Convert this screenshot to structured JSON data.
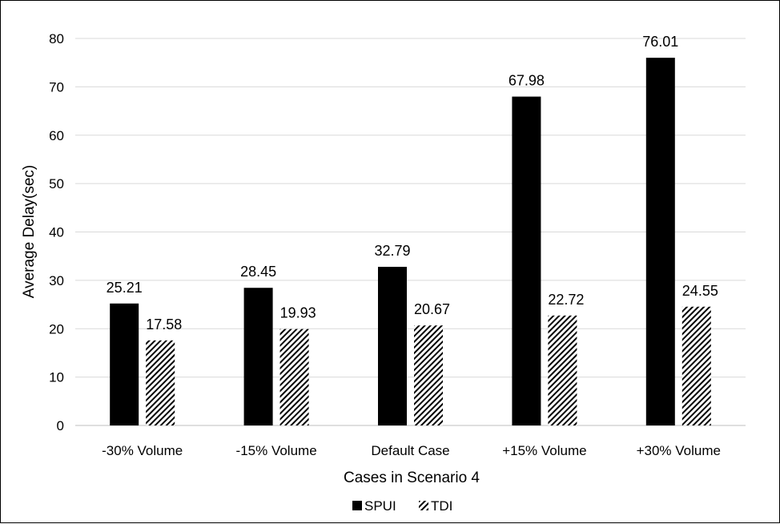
{
  "chart_data": {
    "type": "bar",
    "title": "",
    "xlabel": "Cases in Scenario 4",
    "ylabel": "Average Delay(sec)",
    "ylim": [
      0,
      80
    ],
    "yticks": [
      0,
      10,
      20,
      30,
      40,
      50,
      60,
      70,
      80
    ],
    "grid": "horizontal",
    "legend_position": "bottom",
    "categories": [
      "-30% Volume",
      "-15% Volume",
      "Default Case",
      "+15% Volume",
      "+30% Volume"
    ],
    "series": [
      {
        "name": "SPUI",
        "values": [
          25.21,
          28.45,
          32.79,
          67.98,
          76.01
        ],
        "labels": [
          "25.21",
          "28.45",
          "32.79",
          "67.98",
          "76.01"
        ],
        "fill": "solid-black"
      },
      {
        "name": "TDI",
        "values": [
          17.58,
          19.93,
          20.67,
          22.72,
          24.55
        ],
        "labels": [
          "17.58",
          "19.93",
          "20.67",
          "22.72",
          "24.55"
        ],
        "fill": "diagonal-hatch"
      }
    ],
    "colors": {
      "bar": "#000000",
      "grid": "#d9d9d9",
      "axis": "#bfbfbf"
    }
  }
}
